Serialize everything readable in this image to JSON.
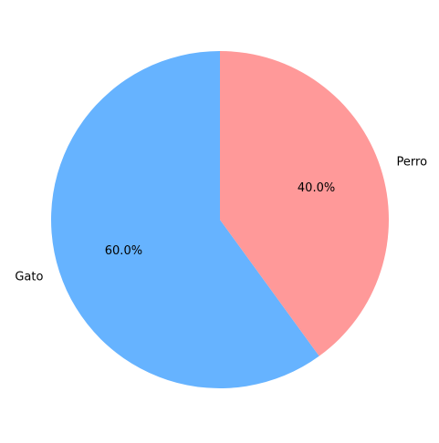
{
  "chart_data": {
    "type": "pie",
    "slices": [
      {
        "label": "Gato",
        "value": 60.0,
        "pct_label": "60.0%",
        "color": "#66b3ff"
      },
      {
        "label": "Perro",
        "value": 40.0,
        "pct_label": "40.0%",
        "color": "#ff9999"
      }
    ],
    "start_angle_deg": 90,
    "direction": "counterclockwise"
  }
}
